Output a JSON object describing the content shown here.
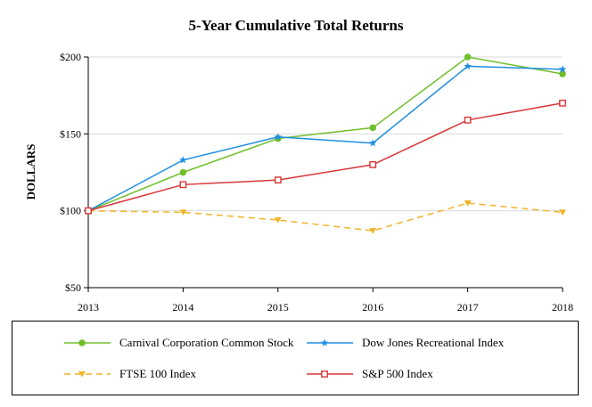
{
  "chart_data": {
    "type": "line",
    "title": "5-Year Cumulative Total Returns",
    "ylabel": "DOLLARS",
    "xlabel": "",
    "x": [
      "2013",
      "2014",
      "2015",
      "2016",
      "2017",
      "2018"
    ],
    "ylim": [
      50,
      200
    ],
    "yticks": [
      50,
      100,
      150,
      200
    ],
    "ytick_labels": [
      "$50",
      "$100",
      "$150",
      "$200"
    ],
    "grid": "horizontal",
    "legend_position": "bottom",
    "series": [
      {
        "name": "Carnival Corporation Common Stock",
        "color": "#70bf2b",
        "marker": "circle",
        "dash": "solid",
        "values": [
          100,
          125,
          147,
          154,
          200,
          189
        ]
      },
      {
        "name": "Dow Jones Recreational Index",
        "color": "#1f8fe0",
        "marker": "star",
        "dash": "solid",
        "values": [
          100,
          133,
          148,
          144,
          194,
          192
        ]
      },
      {
        "name": "FTSE 100 Index",
        "color": "#f0b429",
        "marker": "triangle-down",
        "dash": "dashed",
        "values": [
          100,
          99,
          94,
          87,
          105,
          99
        ]
      },
      {
        "name": "S&P 500 Index",
        "color": "#d93636",
        "marker": "square-open",
        "dash": "solid",
        "values": [
          100,
          117,
          120,
          130,
          159,
          170
        ]
      }
    ]
  }
}
